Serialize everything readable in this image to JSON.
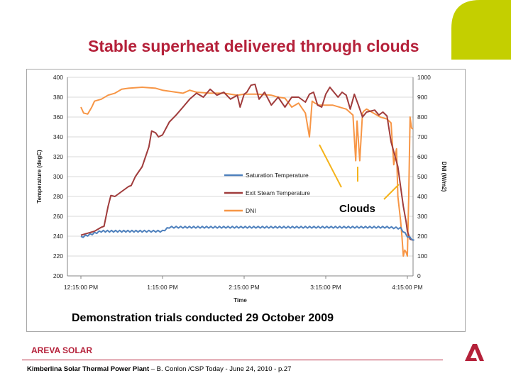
{
  "slide": {
    "title": "Stable superheat delivered through clouds",
    "caption": "Demonstration trials conducted 29 October 2009",
    "brand": "AREVA SOLAR",
    "footer_bold": "Kimberlina  Solar Thermal Power Plant",
    "footer_rest": " – B. Conlon /CSP Today - June 24, 2010 - p.27"
  },
  "colors": {
    "title": "#b5213a",
    "corner_shape": "#c4cf00",
    "saturation": "#4f81bd",
    "exit_steam": "#a03c3c",
    "dni": "#f79646",
    "callout": "#f5b31b"
  },
  "chart_data": {
    "type": "line",
    "xlabel": "Time",
    "ylabel": "Temperature (degC)",
    "y2label": "DNI (W/m2)",
    "x_ticks": [
      "12:15:00 PM",
      "1:15:00 PM",
      "2:15:00 PM",
      "3:15:00 PM",
      "4:15:00 PM"
    ],
    "x_range": [
      "12:15",
      "4:15"
    ],
    "ylim": [
      200,
      400
    ],
    "y_ticks": [
      200,
      220,
      240,
      260,
      280,
      300,
      320,
      340,
      360,
      380,
      400
    ],
    "y2lim": [
      0,
      1000
    ],
    "y2_ticks": [
      0,
      100,
      200,
      300,
      400,
      500,
      600,
      700,
      800,
      900,
      1000
    ],
    "grid": "horizontal",
    "legend_position": "center",
    "annotation": "Clouds",
    "series": [
      {
        "name": "Saturation Temperature",
        "axis": "left",
        "style": "sawtooth",
        "x": [
          "12:15",
          "12:25",
          "12:30",
          "12:45",
          "1:00",
          "1:10",
          "1:15",
          "1:20",
          "1:30",
          "2:00",
          "2:30",
          "3:00",
          "3:30",
          "4:00",
          "4:10",
          "4:15",
          "4:20"
        ],
        "values": [
          239,
          243,
          245,
          245,
          245,
          245,
          245,
          249,
          249,
          249,
          249,
          249,
          249,
          249,
          248,
          240,
          236
        ]
      },
      {
        "name": "Exit Steam Temperature",
        "axis": "left",
        "x": [
          "12:15",
          "12:25",
          "12:30",
          "12:32",
          "12:35",
          "12:37",
          "12:40",
          "12:45",
          "12:50",
          "12:52",
          "12:55",
          "1:00",
          "1:05",
          "1:07",
          "1:10",
          "1:12",
          "1:15",
          "1:20",
          "1:25",
          "1:30",
          "1:35",
          "1:40",
          "1:45",
          "1:50",
          "1:55",
          "2:00",
          "2:05",
          "2:10",
          "2:12",
          "2:15",
          "2:17",
          "2:20",
          "2:23",
          "2:26",
          "2:30",
          "2:35",
          "2:40",
          "2:45",
          "2:50",
          "2:55",
          "3:00",
          "3:03",
          "3:06",
          "3:09",
          "3:12",
          "3:15",
          "3:18",
          "3:21",
          "3:24",
          "3:27",
          "3:30",
          "3:33",
          "3:36",
          "3:39",
          "3:42",
          "3:45",
          "3:48",
          "3:51",
          "3:54",
          "3:57",
          "4:00",
          "4:03",
          "4:06",
          "4:08",
          "4:10",
          "4:12",
          "4:14",
          "4:15",
          "4:17",
          "4:19"
        ],
        "values": [
          241,
          245,
          249,
          250,
          270,
          281,
          280,
          285,
          290,
          291,
          300,
          310,
          330,
          346,
          344,
          340,
          342,
          355,
          362,
          370,
          378,
          384,
          380,
          388,
          382,
          385,
          378,
          382,
          370,
          383,
          385,
          392,
          393,
          378,
          385,
          372,
          380,
          370,
          380,
          380,
          375,
          383,
          385,
          372,
          370,
          383,
          390,
          385,
          380,
          385,
          382,
          368,
          383,
          372,
          360,
          365,
          366,
          367,
          362,
          365,
          361,
          335,
          320,
          310,
          290,
          270,
          255,
          245,
          237,
          236
        ]
      },
      {
        "name": "DNI",
        "axis": "right",
        "x": [
          "12:15",
          "12:17",
          "12:20",
          "12:23",
          "12:25",
          "12:30",
          "12:35",
          "12:40",
          "12:45",
          "12:50",
          "1:00",
          "1:10",
          "1:15",
          "1:20",
          "1:30",
          "1:35",
          "1:40",
          "1:50",
          "2:00",
          "2:10",
          "2:15",
          "2:25",
          "2:35",
          "2:40",
          "2:45",
          "2:50",
          "2:55",
          "3:00",
          "3:03",
          "3:05",
          "3:07",
          "3:10",
          "3:20",
          "3:30",
          "3:35",
          "3:37",
          "3:38",
          "3:40",
          "3:42",
          "3:43",
          "3:45",
          "3:50",
          "3:55",
          "4:00",
          "4:03",
          "4:05",
          "4:07",
          "4:08",
          "4:10",
          "4:11",
          "4:12",
          "4:13",
          "4:14",
          "4:15",
          "4:16",
          "4:17",
          "4:18",
          "4:19"
        ],
        "values": [
          850,
          820,
          815,
          850,
          880,
          890,
          910,
          920,
          940,
          945,
          950,
          945,
          935,
          930,
          920,
          935,
          925,
          920,
          920,
          910,
          915,
          915,
          910,
          900,
          895,
          850,
          870,
          820,
          700,
          880,
          870,
          860,
          860,
          840,
          810,
          580,
          780,
          580,
          820,
          830,
          840,
          820,
          800,
          790,
          770,
          560,
          640,
          400,
          280,
          200,
          100,
          130,
          120,
          100,
          400,
          800,
          745,
          740
        ]
      }
    ]
  }
}
